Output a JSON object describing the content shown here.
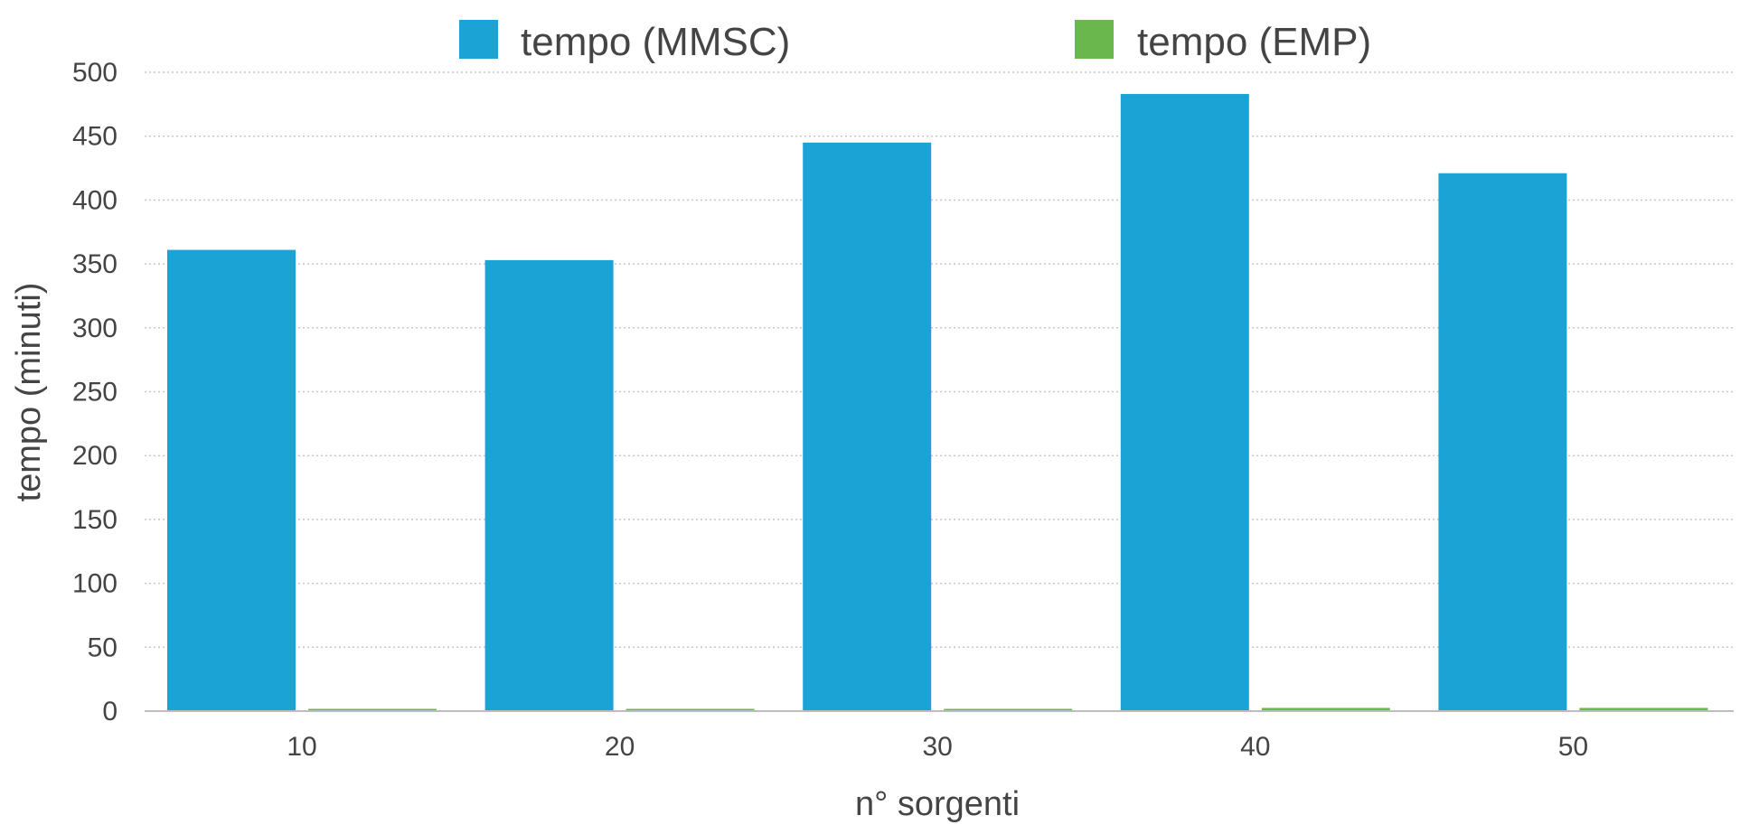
{
  "chart_data": {
    "type": "bar",
    "title": "",
    "xlabel": "n° sorgenti",
    "ylabel": "tempo (minuti)",
    "categories": [
      "10",
      "20",
      "30",
      "40",
      "50"
    ],
    "series": [
      {
        "name": "tempo (MMSC)",
        "color": "#1ba3d6",
        "values": [
          361,
          353,
          445,
          483,
          421
        ]
      },
      {
        "name": "tempo (EMP)",
        "color": "#6ab84d",
        "values": [
          0.3,
          0.5,
          1.5,
          2.5,
          2.5
        ]
      }
    ],
    "ylim": [
      0,
      500
    ],
    "yticks": [
      "0",
      "50",
      "100",
      "150",
      "200",
      "250",
      "300",
      "350",
      "400",
      "450",
      "500"
    ],
    "grid": true,
    "legend_position": "top"
  }
}
